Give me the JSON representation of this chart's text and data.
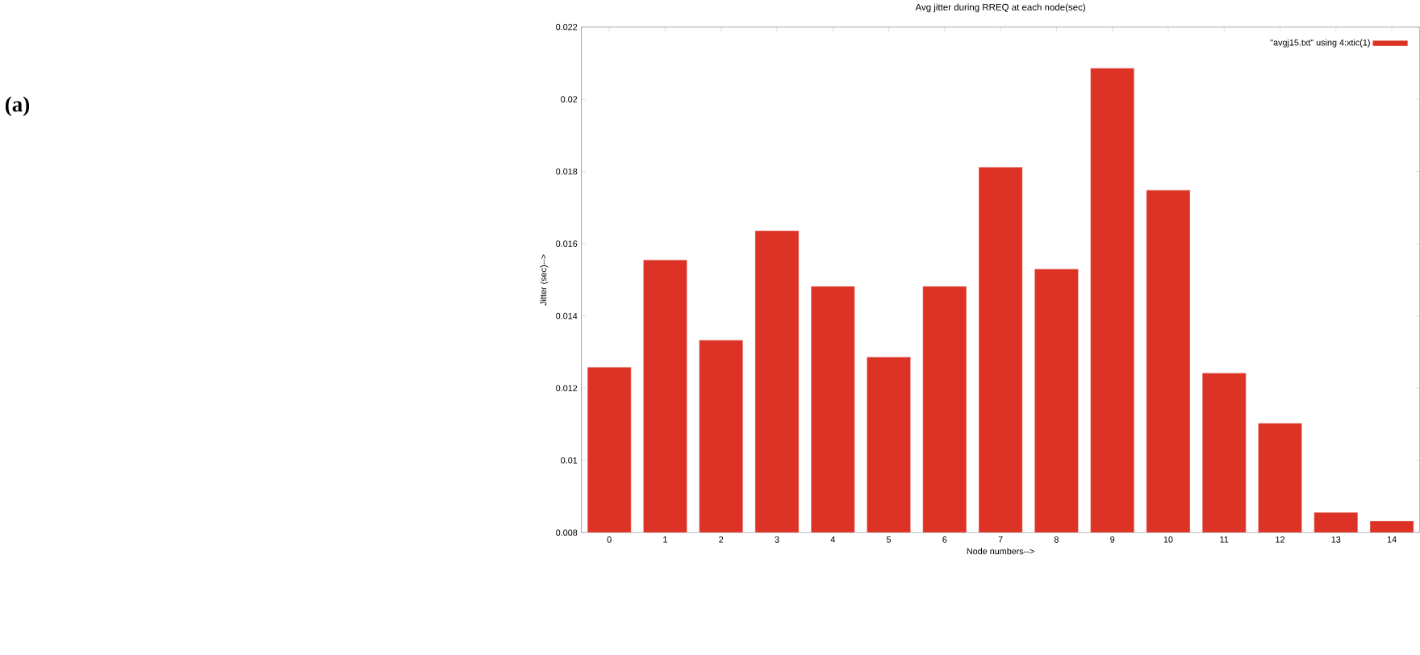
{
  "chart_data": {
    "type": "bar",
    "title": "Avg jitter during RREQ at each node(sec)",
    "xlabel": "Node numbers-->",
    "ylabel": "Jitter (sec)-->",
    "annotations": [
      "(a)"
    ],
    "categories": [
      "0",
      "1",
      "2",
      "3",
      "4",
      "5",
      "6",
      "7",
      "8",
      "9",
      "10",
      "11",
      "12",
      "13",
      "14"
    ],
    "series": [
      {
        "name": "\"avgj15.txt\" using 4:xtic(1)",
        "color": "#dc3326",
        "values": [
          0.01258,
          0.01555,
          0.01333,
          0.01636,
          0.01482,
          0.01286,
          0.01482,
          0.01812,
          0.0153,
          0.02086,
          0.01748,
          0.01242,
          0.01103,
          0.00856,
          0.00832
        ]
      }
    ],
    "ylim": [
      0.008,
      0.022
    ],
    "yticks": [
      0.008,
      0.01,
      0.012,
      0.014,
      0.016,
      0.018,
      0.02,
      0.022
    ],
    "grid": false,
    "legend": "top right"
  }
}
